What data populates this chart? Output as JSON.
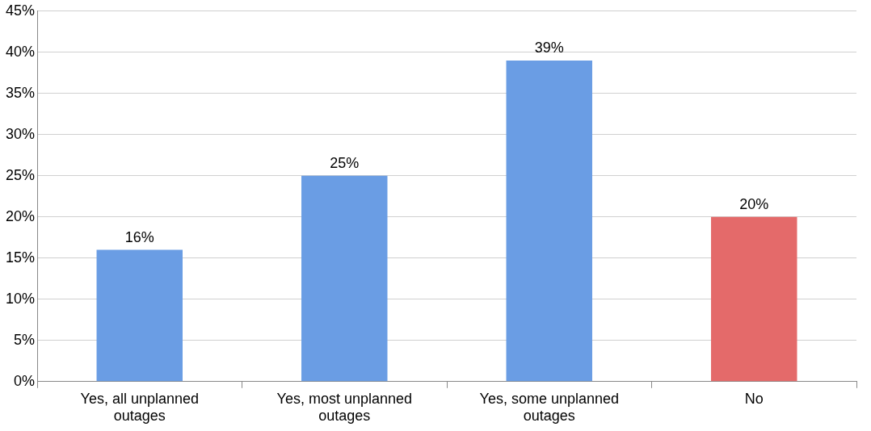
{
  "chart_data": {
    "type": "bar",
    "categories": [
      "Yes, all unplanned outages",
      "Yes, most unplanned outages",
      "Yes, some unplanned outages",
      "No"
    ],
    "values": [
      16,
      25,
      39,
      20
    ],
    "colors": [
      "#6a9de4",
      "#6a9de4",
      "#6a9de4",
      "#e46a6a"
    ],
    "value_labels": [
      "16%",
      "25%",
      "39%",
      "20%"
    ],
    "ylim": [
      0,
      45
    ],
    "yticks": [
      {
        "value": 0,
        "label": "0%"
      },
      {
        "value": 5,
        "label": "5%"
      },
      {
        "value": 10,
        "label": "10%"
      },
      {
        "value": 15,
        "label": "15%"
      },
      {
        "value": 20,
        "label": "20%"
      },
      {
        "value": 25,
        "label": "25%"
      },
      {
        "value": 30,
        "label": "30%"
      },
      {
        "value": 35,
        "label": "35%"
      },
      {
        "value": 40,
        "label": "40%"
      },
      {
        "value": 45,
        "label": "45%"
      }
    ],
    "grid": "y"
  }
}
